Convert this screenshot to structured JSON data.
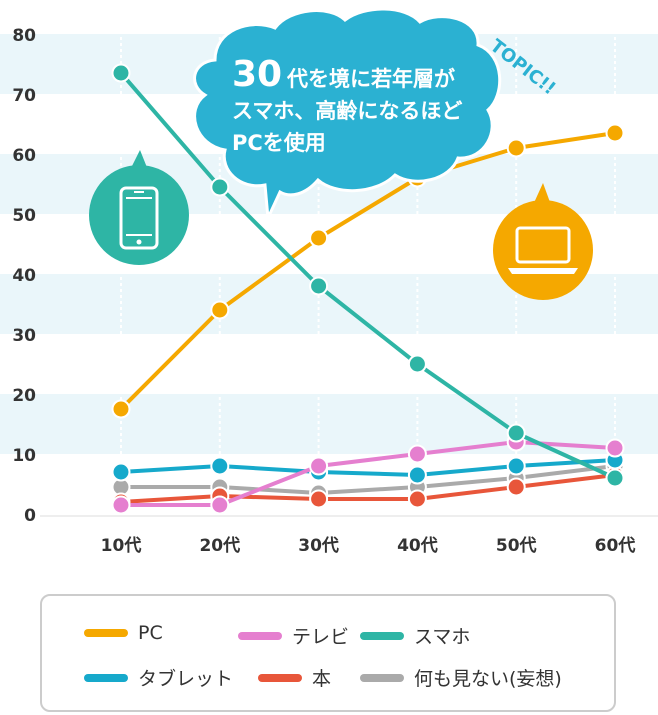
{
  "callout": {
    "line1_big": "30",
    "line1_rest": "代を境に若年層が",
    "line2": "スマホ、高齢になるほど",
    "line3": "PCを使用",
    "topic": "TOPIC!!"
  },
  "icons": {
    "left": "smartphone-icon",
    "right": "laptop-icon"
  },
  "colors": {
    "PC": "#F5A800",
    "テレビ": "#E57FCF",
    "スマホ": "#2EB5A5",
    "タブレット": "#16A9CB",
    "本": "#E8563A",
    "何も見ない(妄想)": "#AAAAAA",
    "band": "#EAF6FA",
    "callout": "#2BB1D2"
  },
  "chart_data": {
    "type": "line",
    "categories": [
      "10代",
      "20代",
      "30代",
      "40代",
      "50代",
      "60代"
    ],
    "ylim": [
      0,
      80
    ],
    "yticks": [
      0,
      10,
      20,
      30,
      40,
      50,
      60,
      70,
      80
    ],
    "xlabel": "",
    "ylabel": "",
    "title": "",
    "grid": "alternating horizontal bands",
    "legend_position": "bottom",
    "series": [
      {
        "name": "PC",
        "values": [
          17.5,
          34,
          46,
          56,
          61,
          63.5
        ]
      },
      {
        "name": "テレビ",
        "values": [
          1.5,
          1.5,
          8,
          10,
          12,
          11
        ]
      },
      {
        "name": "スマホ",
        "values": [
          73.5,
          54.5,
          38,
          25,
          13.5,
          6
        ]
      },
      {
        "name": "タブレット",
        "values": [
          7,
          8,
          7,
          6.5,
          8,
          9
        ]
      },
      {
        "name": "本",
        "values": [
          2,
          3,
          2.5,
          2.5,
          4.5,
          6.5
        ]
      },
      {
        "name": "何も見ない(妄想)",
        "values": [
          4.5,
          4.5,
          3.5,
          4.5,
          6,
          8
        ]
      }
    ]
  },
  "legend": [
    {
      "label": "PC"
    },
    {
      "label": "テレビ"
    },
    {
      "label": "スマホ"
    },
    {
      "label": "タブレット"
    },
    {
      "label": "本"
    },
    {
      "label": "何も見ない(妄想)"
    }
  ]
}
